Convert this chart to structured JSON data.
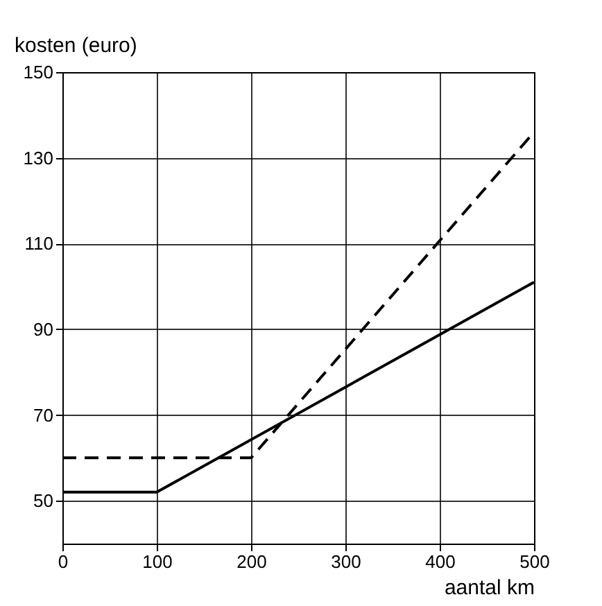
{
  "chart_data": {
    "type": "line",
    "xlabel": "aantal km",
    "ylabel": "kosten (euro)",
    "series": [
      {
        "color": "#000000",
        "line_style": "solid",
        "x": [
          0,
          100,
          500
        ],
        "values": [
          52,
          52,
          101
        ]
      },
      {
        "color": "#000000",
        "line_style": "dashed",
        "x": [
          0,
          200,
          500
        ],
        "values": [
          60,
          60,
          136
        ]
      }
    ],
    "xlim": [
      0,
      500
    ],
    "ylim": [
      40,
      150
    ],
    "xticks": [
      0,
      100,
      200,
      300,
      400,
      500
    ],
    "yticks": [
      50,
      70,
      90,
      110,
      130,
      150
    ],
    "grid": true,
    "marker": "none"
  }
}
